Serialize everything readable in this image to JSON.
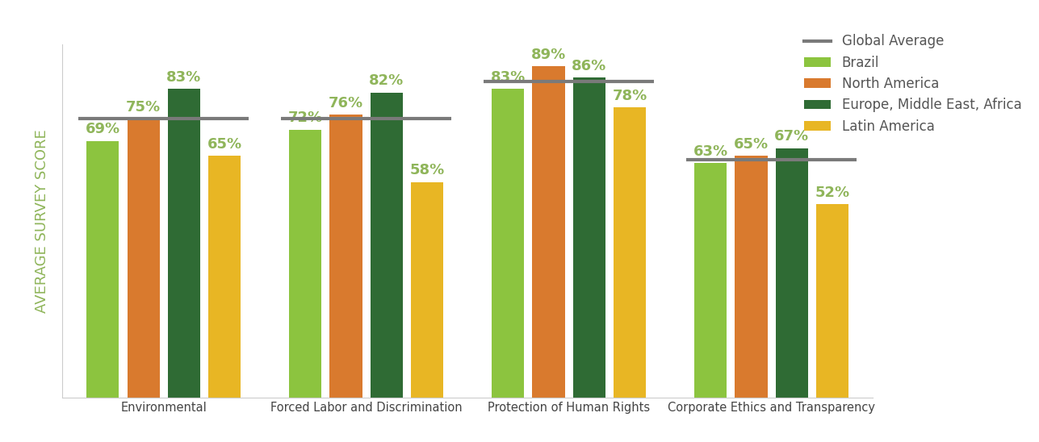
{
  "chart_data": {
    "type": "bar",
    "y_label": "AVERAGE SURVEY SCORE",
    "categories": [
      "Environmental",
      "Forced Labor and Discrimination",
      "Protection of Human Rights",
      "Corporate Ethics and Transparency"
    ],
    "series": [
      {
        "name": "Global Average",
        "type": "line",
        "color": "#7a7a7a",
        "values": [
          75,
          75,
          85,
          64
        ]
      },
      {
        "name": "Brazil",
        "color": "#8cc43f",
        "values": [
          69,
          72,
          83,
          63
        ],
        "value_labels": [
          "69%",
          "72%",
          "83%",
          "63%"
        ]
      },
      {
        "name": "North America",
        "color": "#d97a2e",
        "values": [
          75,
          76,
          89,
          65
        ],
        "value_labels": [
          "75%",
          "76%",
          "89%",
          "65%"
        ]
      },
      {
        "name": "Europe, Middle East, Africa",
        "color": "#2f6b34",
        "values": [
          83,
          82,
          86,
          67
        ],
        "value_labels": [
          "83%",
          "82%",
          "86%",
          "67%"
        ]
      },
      {
        "name": "Latin America",
        "color": "#e8b624",
        "values": [
          65,
          58,
          78,
          52
        ],
        "value_labels": [
          "65%",
          "58%",
          "78%",
          "52%"
        ]
      }
    ],
    "ylim": [
      0,
      95
    ],
    "data_labels": true,
    "tick_labels": "x",
    "legend": "upper right",
    "grid": false
  }
}
